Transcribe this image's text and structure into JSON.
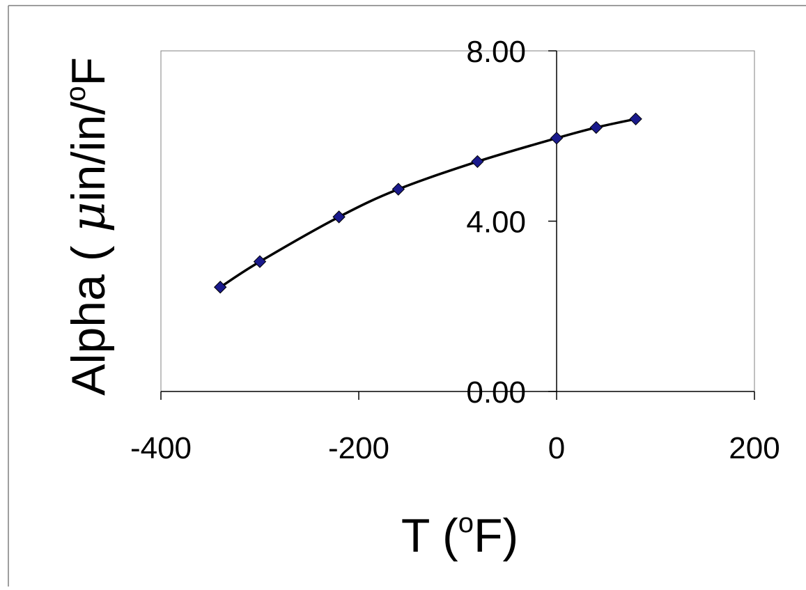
{
  "chart_data": {
    "type": "scatter",
    "title": "",
    "xlabel": {
      "prefix": "T (",
      "sup": "o",
      "suffix": "F)"
    },
    "ylabel": {
      "prefix": "Alpha ( ",
      "mu": "μ",
      "mid": "in/in/",
      "sup": "o",
      "suffix": "F"
    },
    "xlim": [
      -400,
      200
    ],
    "ylim": [
      0,
      8
    ],
    "x_ticks": [
      -400,
      -200,
      0,
      200
    ],
    "x_tick_labels": [
      "-400",
      "-200",
      "0",
      "200"
    ],
    "y_ticks": [
      0,
      4,
      8
    ],
    "y_tick_labels": [
      "0.00",
      "4.00",
      "8.00"
    ],
    "grid": false,
    "legend": "none",
    "series": [
      {
        "x": [
          -340,
          -300,
          -220,
          -160,
          -80,
          0,
          40,
          80
        ],
        "y": [
          2.45,
          3.05,
          4.1,
          4.75,
          5.4,
          5.95,
          6.2,
          6.4
        ],
        "marker": "diamond",
        "marker_color": "#1a1a8c",
        "trendline": true,
        "trendline_color": "#000000"
      }
    ]
  }
}
